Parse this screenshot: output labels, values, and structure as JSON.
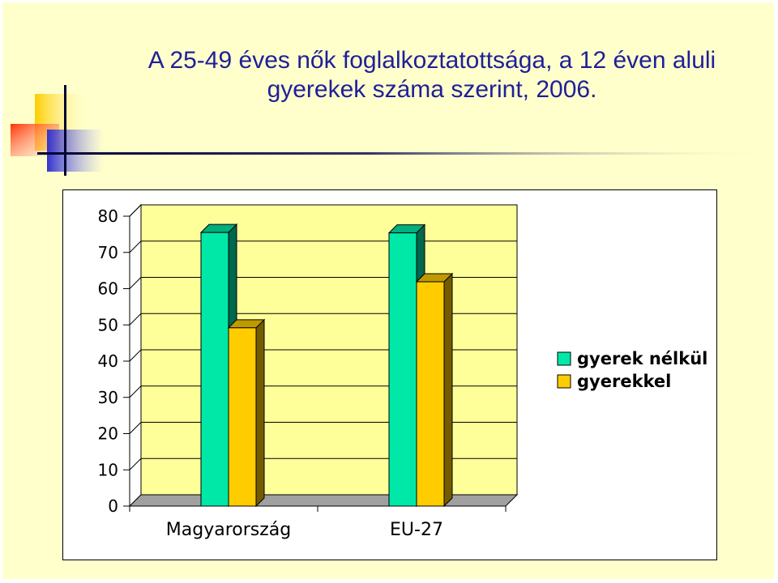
{
  "slide": {
    "title_line1": "A 25-49 éves nők foglalkoztatottsága, a 12 éven aluli",
    "title_line2": "gyerekek száma szerint, 2006."
  },
  "colors": {
    "background": "#FFFFCC",
    "title": "#1F1F99",
    "plot_area": "#FFFF99"
  },
  "chart_data": {
    "type": "bar",
    "categories": [
      "Magyarország",
      "EU-27"
    ],
    "series": [
      {
        "name": "gyerek nélkül",
        "values": [
          75.5,
          75.4
        ],
        "color": "#00E8A8"
      },
      {
        "name": "gyerekkel",
        "values": [
          49.2,
          61.9
        ],
        "color": "#FFCC00"
      }
    ],
    "ylim": [
      0,
      80
    ],
    "yticks": [
      "0",
      "10",
      "20",
      "30",
      "40",
      "50",
      "60",
      "70",
      "80"
    ],
    "title": "",
    "xlabel": "",
    "ylabel": "",
    "grid": true,
    "legend_position": "right",
    "style": "3d-clustered"
  }
}
